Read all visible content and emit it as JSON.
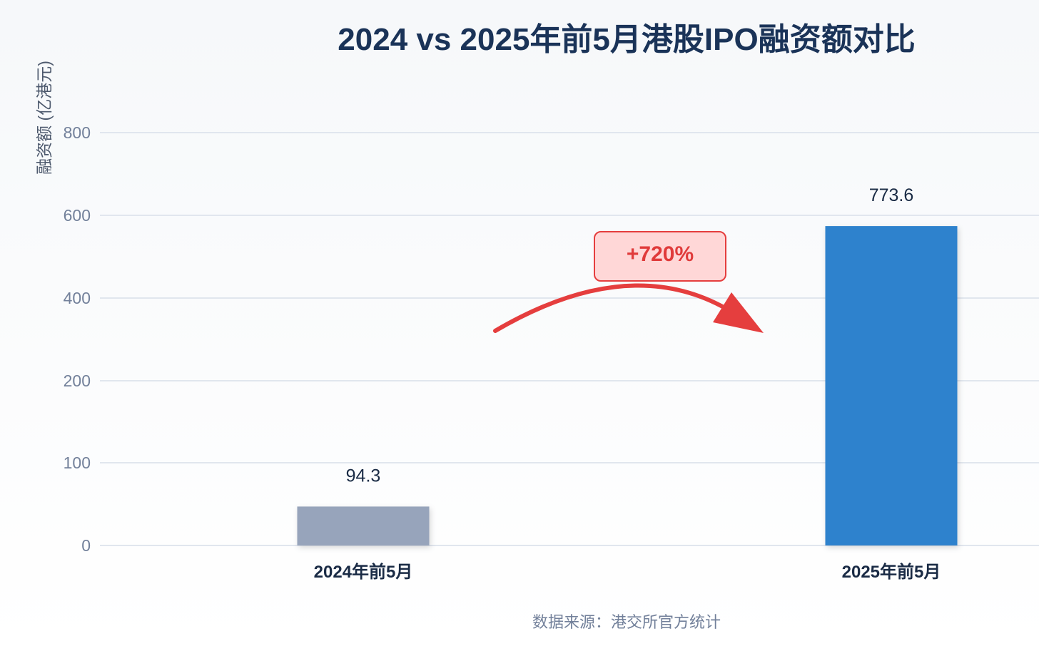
{
  "chart_data": {
    "type": "bar",
    "title": "2024 vs 2025年前5月港股IPO融资额对比",
    "ylabel": "融资额 (亿港元)",
    "xlabel": "",
    "categories": [
      "2024年前5月",
      "2025年前5月"
    ],
    "values": [
      94.3,
      773.6
    ],
    "data_labels": [
      "94.3",
      "773.6"
    ],
    "y_ticks": [
      0,
      100,
      200,
      400,
      600,
      800
    ],
    "y_tick_labels": [
      "0",
      "100",
      "200",
      "400",
      "600",
      "800"
    ],
    "ylim": [
      0,
      800
    ],
    "grid": true,
    "bar_colors": [
      "#97a4bb",
      "#2f82cd"
    ],
    "annotation": {
      "text": "+720%",
      "arrow_color": "#e53e3e",
      "badge_fill": "#ffd7d7"
    },
    "source_note": "数据来源：港交所官方统计"
  }
}
